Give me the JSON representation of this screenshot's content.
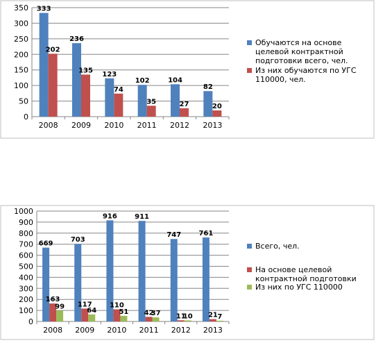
{
  "chart_data": [
    {
      "type": "bar",
      "categories": [
        "2008",
        "2009",
        "2010",
        "2011",
        "2012",
        "2013"
      ],
      "series": [
        {
          "name": "Обучаются на основе целевой контрактной подготовки всего, чел.",
          "legend_lines": [
            "Обучаются на основе",
            "целевой контрактной",
            "подготовки всего, чел."
          ],
          "values": [
            333,
            236,
            123,
            102,
            104,
            82
          ],
          "color": "#4f81bd"
        },
        {
          "name": "Из них обучаются по УГС 110000, чел.",
          "legend_lines": [
            "Из них обучаются по УГС",
            "110000, чел."
          ],
          "values": [
            202,
            135,
            74,
            35,
            27,
            20
          ],
          "color": "#c0504d"
        }
      ],
      "ylim": [
        0,
        350
      ],
      "yticks": [
        0,
        50,
        100,
        150,
        200,
        250,
        300,
        350
      ],
      "grid": true,
      "legend_position": "right",
      "title": "",
      "xlabel": "",
      "ylabel": ""
    },
    {
      "type": "bar",
      "categories": [
        "2008",
        "2009",
        "2010",
        "2011",
        "2012",
        "2013"
      ],
      "series": [
        {
          "name": "Всего, чел.",
          "legend_lines": [
            "Всего, чел."
          ],
          "values": [
            669,
            703,
            916,
            911,
            747,
            761
          ],
          "color": "#4f81bd"
        },
        {
          "name": "На основе целевой контрактной подготовки",
          "legend_lines": [
            "На основе целевой",
            "контрактной подготовки"
          ],
          "values": [
            163,
            117,
            110,
            42,
            11,
            21
          ],
          "color": "#c0504d"
        },
        {
          "name": "Из них по УГС 110000",
          "legend_lines": [
            "Из них по УГС 110000"
          ],
          "values": [
            99,
            64,
            51,
            37,
            10,
            7
          ],
          "color": "#9bbb59"
        }
      ],
      "ylim": [
        0,
        1000
      ],
      "yticks": [
        0,
        100,
        200,
        300,
        400,
        500,
        600,
        700,
        800,
        900,
        1000
      ],
      "grid": true,
      "legend_position": "right",
      "title": "",
      "xlabel": "",
      "ylabel": ""
    }
  ]
}
